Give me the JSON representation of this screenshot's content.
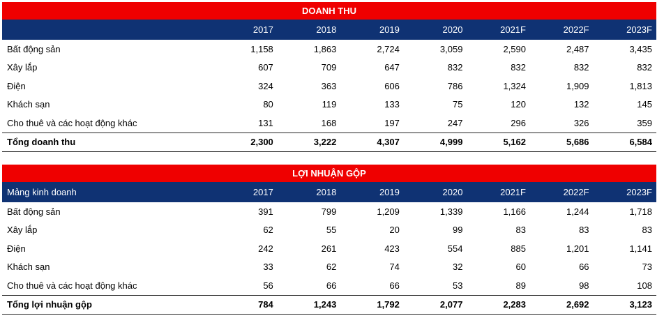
{
  "revenue": {
    "title": "DOANH THU",
    "header_label": "",
    "years": [
      "2017",
      "2018",
      "2019",
      "2020",
      "2021F",
      "2022F",
      "2023F"
    ],
    "rows": [
      {
        "label": "Bất động sản",
        "values": [
          "1,158",
          "1,863",
          "2,724",
          "3,059",
          "2,590",
          "2,487",
          "3,435"
        ]
      },
      {
        "label": "Xây lắp",
        "values": [
          "607",
          "709",
          "647",
          "832",
          "832",
          "832",
          "832"
        ]
      },
      {
        "label": "Điện",
        "values": [
          "324",
          "363",
          "606",
          "786",
          "1,324",
          "1,909",
          "1,813"
        ]
      },
      {
        "label": "Khách sạn",
        "values": [
          "80",
          "119",
          "133",
          "75",
          "120",
          "132",
          "145"
        ]
      },
      {
        "label": "Cho thuê và các hoạt động khác",
        "values": [
          "131",
          "168",
          "197",
          "247",
          "296",
          "326",
          "359"
        ]
      }
    ],
    "total": {
      "label": "Tổng doanh thu",
      "values": [
        "2,300",
        "3,222",
        "4,307",
        "4,999",
        "5,162",
        "5,686",
        "6,584"
      ]
    }
  },
  "gross_profit": {
    "title": "LỢI NHUẬN GỘP",
    "header_label": "Mảng kinh doanh",
    "years": [
      "2017",
      "2018",
      "2019",
      "2020",
      "2021F",
      "2022F",
      "2023F"
    ],
    "rows": [
      {
        "label": "Bất động sản",
        "values": [
          "391",
          "799",
          "1,209",
          "1,339",
          "1,166",
          "1,244",
          "1,718"
        ]
      },
      {
        "label": "Xây lắp",
        "values": [
          "62",
          "55",
          "20",
          "99",
          "83",
          "83",
          "83"
        ]
      },
      {
        "label": "Điện",
        "values": [
          "242",
          "261",
          "423",
          "554",
          "885",
          "1,201",
          "1,141"
        ]
      },
      {
        "label": "Khách sạn",
        "values": [
          "33",
          "62",
          "74",
          "32",
          "60",
          "66",
          "73"
        ]
      },
      {
        "label": "Cho thuê và các hoạt động khác",
        "values": [
          "56",
          "66",
          "66",
          "53",
          "89",
          "98",
          "108"
        ]
      }
    ],
    "total": {
      "label": "Tổng lợi nhuận gộp",
      "values": [
        "784",
        "1,243",
        "1,792",
        "2,077",
        "2,283",
        "2,692",
        "3,123"
      ]
    }
  }
}
